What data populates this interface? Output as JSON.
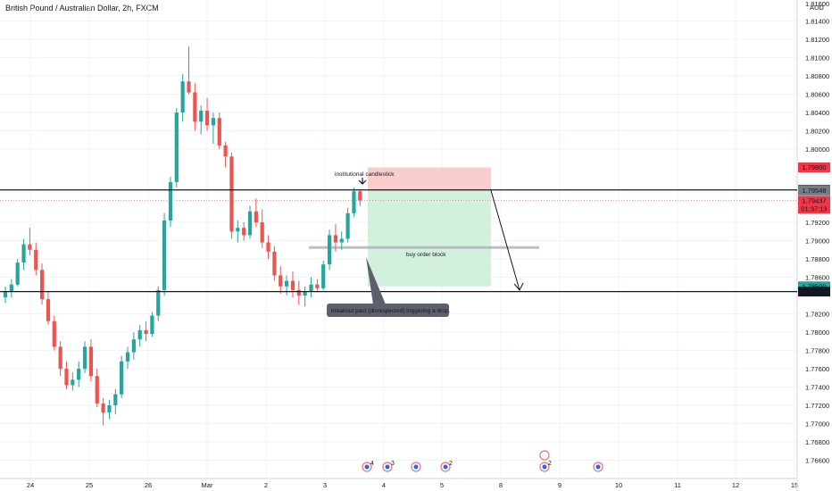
{
  "chart_data": {
    "type": "candlestick",
    "title": "British Pound / Australian Dollar, 2h, FXCM",
    "currency": "AUD",
    "ylim": [
      1.764,
      1.8163
    ],
    "y_ticks": [
      "1.81400",
      "1.81200",
      "1.81000",
      "1.80800",
      "1.80600",
      "1.80400",
      "1.80200",
      "1.80000",
      "1.79200",
      "1.79000",
      "1.78800",
      "1.78600",
      "1.78200",
      "1.78000",
      "1.77800",
      "1.77600",
      "1.77400",
      "1.77200",
      "1.77000",
      "1.76800",
      "1.76600"
    ],
    "y_ticks_values": [
      1.814,
      1.812,
      1.81,
      1.808,
      1.806,
      1.804,
      1.802,
      1.8,
      1.792,
      1.79,
      1.788,
      1.786,
      1.782,
      1.78,
      1.778,
      1.776,
      1.774,
      1.772,
      1.77,
      1.768,
      1.766
    ],
    "top_partial_tick": "1.81600",
    "x_ticks": [
      "24",
      "25",
      "26",
      "Mar",
      "2",
      "3",
      "4",
      "5",
      "8",
      "9",
      "10",
      "11",
      "12",
      "15"
    ],
    "price_labels": [
      {
        "text": "1.79800",
        "value": 1.798,
        "color": "#f23645",
        "filled": true
      },
      {
        "text": "1.79554",
        "value": 1.79554,
        "color": "#131722",
        "filled": true
      },
      {
        "text": "1.79548",
        "value": 1.79548,
        "color": "#787b86",
        "filled": true
      },
      {
        "text": "1.79437",
        "subtext": "01:37:13",
        "value": 1.79437,
        "color": "#f23645",
        "filled": true
      },
      {
        "text": "1.78500",
        "value": 1.785,
        "color": "#26a69a",
        "filled": true
      },
      {
        "text": "1.78443",
        "value": 1.78443,
        "color": "#131722",
        "filled": true
      }
    ],
    "annotations": {
      "institutional": "institutional candlestick",
      "order_block": "buy order block",
      "callout": "breakout past (disrespected) triggering a drop."
    },
    "horizontal_lines": [
      1.79554,
      1.78443
    ],
    "order_block_level": 1.78925,
    "position": {
      "entry": 1.79548,
      "stop": 1.798,
      "target": 1.785
    },
    "colors": {
      "up": "#26a69a",
      "down": "#ef5350",
      "stop_zone": "#f8c4c4",
      "profit_zone": "#c9eed6",
      "grid": "#f0f3fa"
    },
    "candles": [
      [
        1.7838,
        1.785,
        1.7832,
        1.7844
      ],
      [
        1.7844,
        1.7858,
        1.7838,
        1.7852
      ],
      [
        1.7852,
        1.788,
        1.785,
        1.7876
      ],
      [
        1.7876,
        1.7902,
        1.7868,
        1.7896
      ],
      [
        1.7896,
        1.7914,
        1.7884,
        1.789
      ],
      [
        1.789,
        1.7898,
        1.7862,
        1.7868
      ],
      [
        1.7868,
        1.7875,
        1.783,
        1.7836
      ],
      [
        1.7836,
        1.7844,
        1.7808,
        1.7812
      ],
      [
        1.7812,
        1.7818,
        1.778,
        1.7784
      ],
      [
        1.7784,
        1.779,
        1.7752,
        1.776
      ],
      [
        1.776,
        1.7768,
        1.7738,
        1.7742
      ],
      [
        1.7742,
        1.7756,
        1.7736,
        1.7748
      ],
      [
        1.7748,
        1.7768,
        1.774,
        1.776
      ],
      [
        1.776,
        1.779,
        1.7755,
        1.7784
      ],
      [
        1.7784,
        1.7792,
        1.7746,
        1.7752
      ],
      [
        1.7752,
        1.776,
        1.7718,
        1.7722
      ],
      [
        1.7722,
        1.7728,
        1.7698,
        1.7712
      ],
      [
        1.7712,
        1.7726,
        1.7705,
        1.772
      ],
      [
        1.772,
        1.7738,
        1.771,
        1.7732
      ],
      [
        1.7732,
        1.7774,
        1.7728,
        1.7768
      ],
      [
        1.7768,
        1.7784,
        1.776,
        1.7778
      ],
      [
        1.7778,
        1.78,
        1.777,
        1.7792
      ],
      [
        1.7792,
        1.7808,
        1.7784,
        1.7802
      ],
      [
        1.7802,
        1.7812,
        1.779,
        1.7798
      ],
      [
        1.7798,
        1.7822,
        1.7795,
        1.7818
      ],
      [
        1.7818,
        1.785,
        1.7812,
        1.7846
      ],
      [
        1.7846,
        1.793,
        1.784,
        1.7922
      ],
      [
        1.7922,
        1.797,
        1.7915,
        1.7964
      ],
      [
        1.7964,
        1.8045,
        1.7958,
        1.804
      ],
      [
        1.804,
        1.8082,
        1.803,
        1.8074
      ],
      [
        1.8074,
        1.8112,
        1.806,
        1.8062
      ],
      [
        1.8062,
        1.8072,
        1.802,
        1.803
      ],
      [
        1.803,
        1.8048,
        1.8016,
        1.8042
      ],
      [
        1.8042,
        1.8056,
        1.802,
        1.8026
      ],
      [
        1.8026,
        1.804,
        1.8006,
        1.8034
      ],
      [
        1.8034,
        1.804,
        1.8,
        1.8004
      ],
      [
        1.8004,
        1.8008,
        1.798,
        1.7992
      ],
      [
        1.7992,
        1.7996,
        1.7902,
        1.791
      ],
      [
        1.791,
        1.7922,
        1.7898,
        1.7914
      ],
      [
        1.7914,
        1.792,
        1.79,
        1.7906
      ],
      [
        1.7906,
        1.7938,
        1.7902,
        1.7932
      ],
      [
        1.7932,
        1.7946,
        1.7915,
        1.792
      ],
      [
        1.792,
        1.7934,
        1.7892,
        1.7898
      ],
      [
        1.7898,
        1.7906,
        1.788,
        1.7888
      ],
      [
        1.7888,
        1.7894,
        1.7856,
        1.7862
      ],
      [
        1.7862,
        1.7872,
        1.7842,
        1.785
      ],
      [
        1.785,
        1.7862,
        1.784,
        1.7856
      ],
      [
        1.7856,
        1.7866,
        1.7838,
        1.7846
      ],
      [
        1.7846,
        1.7856,
        1.783,
        1.784
      ],
      [
        1.784,
        1.785,
        1.7828,
        1.7844
      ],
      [
        1.7844,
        1.786,
        1.7838,
        1.7852
      ],
      [
        1.7852,
        1.7858,
        1.7844,
        1.7848
      ],
      [
        1.7848,
        1.7878,
        1.7846,
        1.7874
      ],
      [
        1.7874,
        1.7912,
        1.7868,
        1.7906
      ],
      [
        1.7906,
        1.7918,
        1.7888,
        1.7898
      ],
      [
        1.7898,
        1.791,
        1.789,
        1.7902
      ],
      [
        1.7902,
        1.7936,
        1.7898,
        1.793
      ],
      [
        1.793,
        1.7958,
        1.7926,
        1.7954
      ],
      [
        1.7954,
        1.7956,
        1.7938,
        1.7944
      ]
    ]
  }
}
